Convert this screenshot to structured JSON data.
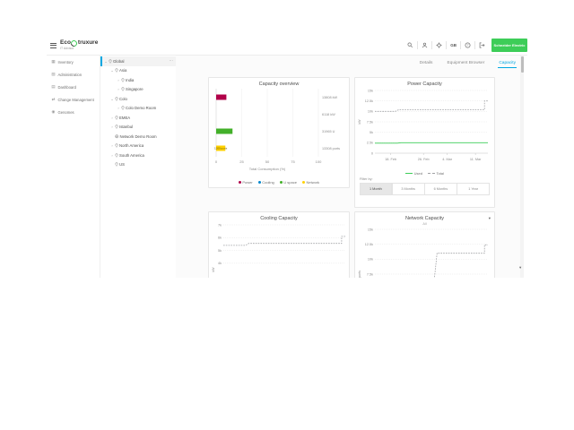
{
  "header": {
    "brand_eco": "Eco",
    "brand_rest": "truxure",
    "brand_sub": "IT Advisor",
    "locale": "GB",
    "schneider": "Schneider Electric",
    "icons": [
      "search",
      "user",
      "settings",
      "help",
      "logout"
    ]
  },
  "nav": {
    "items": [
      {
        "id": "inventory",
        "label": "Inventory",
        "glyph": "▦"
      },
      {
        "id": "administration",
        "label": "Administration",
        "glyph": "▧"
      },
      {
        "id": "dashboard",
        "label": "Dashboard",
        "glyph": "▤"
      },
      {
        "id": "change-management",
        "label": "Change Management",
        "glyph": "⇄"
      },
      {
        "id": "genomes",
        "label": "Genomes",
        "glyph": "◉"
      }
    ]
  },
  "tree": {
    "items": [
      {
        "label": "Global",
        "level": 0,
        "expander": "expanded",
        "icon": "pin",
        "selected": true,
        "menu": "⋯"
      },
      {
        "label": "Asia",
        "level": 1,
        "expander": "expanded",
        "icon": "pin"
      },
      {
        "label": "India",
        "level": 2,
        "expander": "collapsed",
        "icon": "pin"
      },
      {
        "label": "Singapore",
        "level": 2,
        "expander": "collapsed",
        "icon": "pin"
      },
      {
        "label": "Colo",
        "level": 1,
        "expander": "expanded",
        "icon": "pin"
      },
      {
        "label": "Colo Demo Room",
        "level": 2,
        "expander": "collapsed",
        "icon": "pin"
      },
      {
        "label": "EMEA",
        "level": 1,
        "expander": "collapsed",
        "icon": "pin"
      },
      {
        "label": "Istanbul",
        "level": 1,
        "expander": "collapsed",
        "icon": "pin"
      },
      {
        "label": "Network Demo Room",
        "level": 1,
        "expander": "none",
        "icon": "globe"
      },
      {
        "label": "North America",
        "level": 1,
        "expander": "collapsed",
        "icon": "pin"
      },
      {
        "label": "South America",
        "level": 1,
        "expander": "collapsed",
        "icon": "pin"
      },
      {
        "label": "US",
        "level": 1,
        "expander": "none",
        "icon": "pin"
      }
    ]
  },
  "tabs": [
    {
      "label": "Details",
      "active": false
    },
    {
      "label": "Equipment Browser",
      "active": false
    },
    {
      "label": "Capacity",
      "active": true
    }
  ],
  "filter": {
    "label": "Filter by:",
    "options": [
      {
        "label": "1 Month",
        "selected": true
      },
      {
        "label": "3 Months",
        "selected": false
      },
      {
        "label": "6 Months",
        "selected": false
      },
      {
        "label": "1 Year",
        "selected": false
      }
    ]
  },
  "colors": {
    "accent": "#00a7e1",
    "brand_green": "#3dcd58",
    "power": "#b10049",
    "cooling": "#0087cd",
    "u_space": "#43b02a",
    "network": "#ffd100",
    "used_line": "#3dcd58",
    "total_line": "#9fa0a4"
  },
  "chart_data": [
    {
      "id": "capacity-overview",
      "type": "bar",
      "orientation": "horizontal",
      "title": "Capacity overview",
      "xlabel": "Total Consumption (%)",
      "xlim": [
        0,
        100
      ],
      "xticks": [
        0,
        25,
        50,
        75,
        100
      ],
      "categories": [
        "Power",
        "Cooling",
        "U space",
        "Network"
      ],
      "values": [
        10,
        0,
        16,
        9
      ],
      "colors": [
        "#b10049",
        "#0087cd",
        "#43b02a",
        "#ffd100"
      ],
      "bar_labels": [
        "",
        "",
        "",
        "1200 ports"
      ],
      "capacity_labels": [
        "13808 kW",
        "6118 kW",
        "31965 U",
        "13308 ports"
      ],
      "legend": [
        "Power",
        "Cooling",
        "U space",
        "Network"
      ],
      "grid": true
    },
    {
      "id": "power-capacity",
      "type": "line",
      "title": "Power Capacity",
      "ylabel": "kW",
      "ylim": [
        0,
        15000
      ],
      "yticks": [
        {
          "label": "0",
          "value": 0
        },
        {
          "label": "2.5k",
          "value": 2500
        },
        {
          "label": "5k",
          "value": 5000
        },
        {
          "label": "7.5k",
          "value": 7500
        },
        {
          "label": "10k",
          "value": 10000
        },
        {
          "label": "12.5k",
          "value": 12500
        },
        {
          "label": "15k",
          "value": 15000
        }
      ],
      "xticks": [
        {
          "label": "18. Feb",
          "f": 0.14
        },
        {
          "label": "26. Feb",
          "f": 0.43
        },
        {
          "label": "4. Mar",
          "f": 0.64
        },
        {
          "label": "11. Mar",
          "f": 0.89
        }
      ],
      "series": [
        {
          "name": "Used",
          "style": "solid",
          "color": "#3dcd58",
          "points": [
            [
              0,
              2400
            ],
            [
              0.2,
              2400
            ],
            [
              0.23,
              2500
            ],
            [
              1,
              2500
            ]
          ]
        },
        {
          "name": "Total",
          "style": "dashed",
          "color": "#9fa0a4",
          "points": [
            [
              0,
              10000
            ],
            [
              0.18,
              10000
            ],
            [
              0.21,
              10400
            ],
            [
              0.97,
              10400
            ],
            [
              0.97,
              12500
            ],
            [
              1,
              12500
            ]
          ]
        }
      ],
      "legend_position": "bottom",
      "grid": true
    },
    {
      "id": "cooling-capacity",
      "type": "line",
      "title": "Cooling Capacity",
      "ylabel": "kW",
      "ylim": [
        0,
        7000
      ],
      "yticks": [
        {
          "label": "4k",
          "value": 4000
        },
        {
          "label": "5k",
          "value": 5000
        },
        {
          "label": "6k",
          "value": 6000
        },
        {
          "label": "7k",
          "value": 7000
        }
      ],
      "xticks": [],
      "series": [
        {
          "name": "Total",
          "style": "dashed",
          "color": "#9fa0a4",
          "points": [
            [
              0,
              5400
            ],
            [
              0.18,
              5400
            ],
            [
              0.21,
              5550
            ],
            [
              0.97,
              5550
            ],
            [
              0.97,
              6100
            ],
            [
              1,
              6100
            ]
          ]
        }
      ],
      "grid": true,
      "clipped_by_viewport": true
    },
    {
      "id": "network-capacity",
      "type": "line",
      "title": "Network Capacity",
      "subtitle": "All",
      "ylabel": "ports",
      "ylim": [
        0,
        15000
      ],
      "yticks": [
        {
          "label": "7.5k",
          "value": 7500
        },
        {
          "label": "10k",
          "value": 10000
        },
        {
          "label": "12.5k",
          "value": 12500
        },
        {
          "label": "15k",
          "value": 15000
        }
      ],
      "xticks": [],
      "series": [
        {
          "name": "Total",
          "style": "dashed",
          "color": "#9fa0a4",
          "points": [
            [
              0.5,
              2000
            ],
            [
              0.55,
              11000
            ],
            [
              0.97,
              11000
            ],
            [
              0.97,
              12400
            ],
            [
              1,
              12400
            ]
          ]
        }
      ],
      "grid": true,
      "clipped_by_viewport": true
    }
  ]
}
